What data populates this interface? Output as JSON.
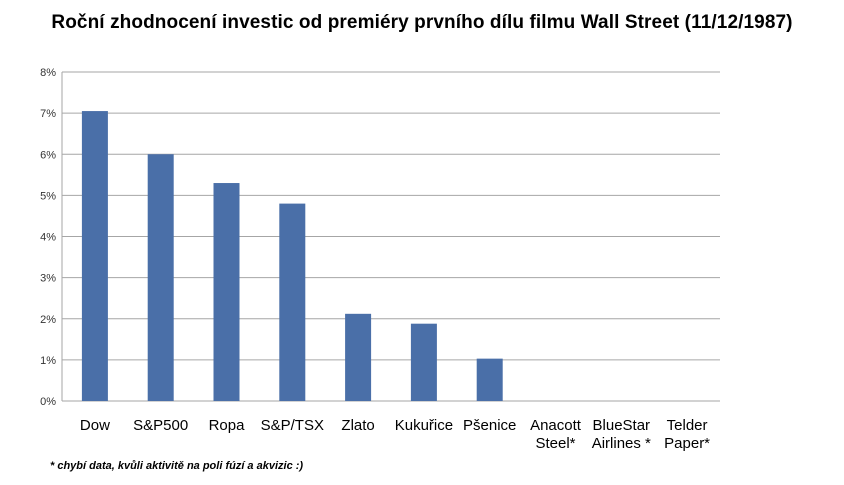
{
  "chart_data": {
    "type": "bar",
    "title": "Roční zhodnocení investic od premiéry prvního dílu filmu Wall Street (11/12/1987)",
    "categories": [
      [
        "Dow"
      ],
      [
        "S&P500"
      ],
      [
        "Ropa"
      ],
      [
        "S&P/TSX"
      ],
      [
        "Zlato"
      ],
      [
        "Kukuřice"
      ],
      [
        "Pšenice"
      ],
      [
        "Anacott",
        "Steel*"
      ],
      [
        "BlueStar",
        "Airlines *"
      ],
      [
        "Telder",
        "Paper*"
      ]
    ],
    "values": [
      7.05,
      6.0,
      5.3,
      4.8,
      2.12,
      1.88,
      1.03,
      null,
      null,
      null
    ],
    "ylim": [
      0,
      8
    ],
    "yticks": [
      "0%",
      "1%",
      "2%",
      "3%",
      "4%",
      "5%",
      "6%",
      "7%",
      "8%"
    ],
    "grid": true,
    "bar_color": "#4A6FA8",
    "grid_color": "#A6A6A6",
    "footnote": "* chybí data, kvůli aktivitě na poli fúzí a akvizic :)"
  }
}
